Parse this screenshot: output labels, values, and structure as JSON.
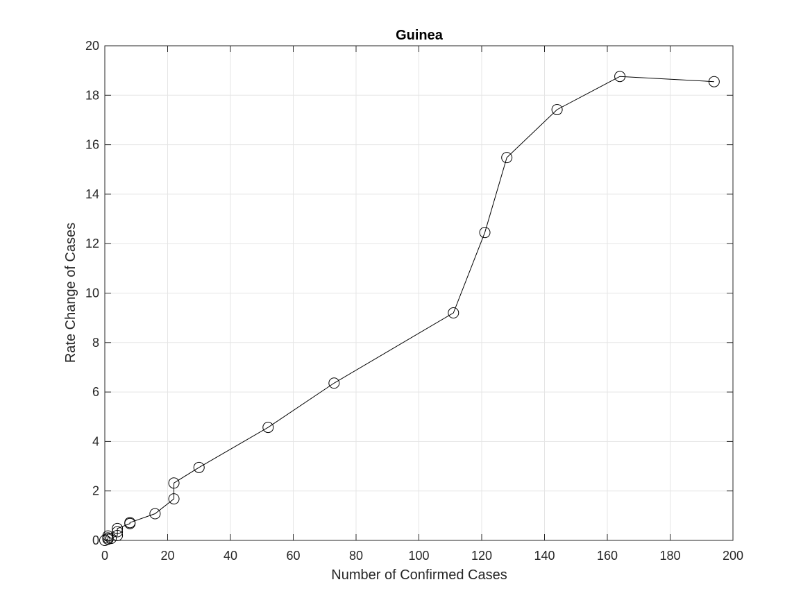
{
  "chart_data": {
    "type": "line",
    "title": "Guinea",
    "xlabel": "Number of Confirmed Cases",
    "ylabel": "Rate Change of Cases",
    "xlim": [
      0,
      200
    ],
    "ylim": [
      0,
      20
    ],
    "xticks": [
      0,
      20,
      40,
      60,
      80,
      100,
      120,
      140,
      160,
      180,
      200
    ],
    "yticks": [
      0,
      2,
      4,
      6,
      8,
      10,
      12,
      14,
      16,
      18,
      20
    ],
    "grid": true,
    "marker": "circle",
    "colors": {
      "line": "#000000",
      "grid": "#e5e5e5",
      "axis": "#262626"
    },
    "series": [
      {
        "x": [
          0,
          1,
          1,
          1,
          2,
          4,
          4,
          4,
          8,
          8,
          16,
          22,
          22,
          30,
          52,
          73,
          111,
          121,
          128,
          144,
          164,
          194
        ],
        "y": [
          0,
          0.05,
          0.1,
          0.18,
          0.08,
          0.2,
          0.35,
          0.48,
          0.68,
          0.72,
          1.08,
          1.68,
          2.32,
          2.95,
          4.57,
          6.36,
          9.2,
          12.45,
          15.48,
          17.42,
          18.76,
          18.55
        ]
      }
    ]
  }
}
